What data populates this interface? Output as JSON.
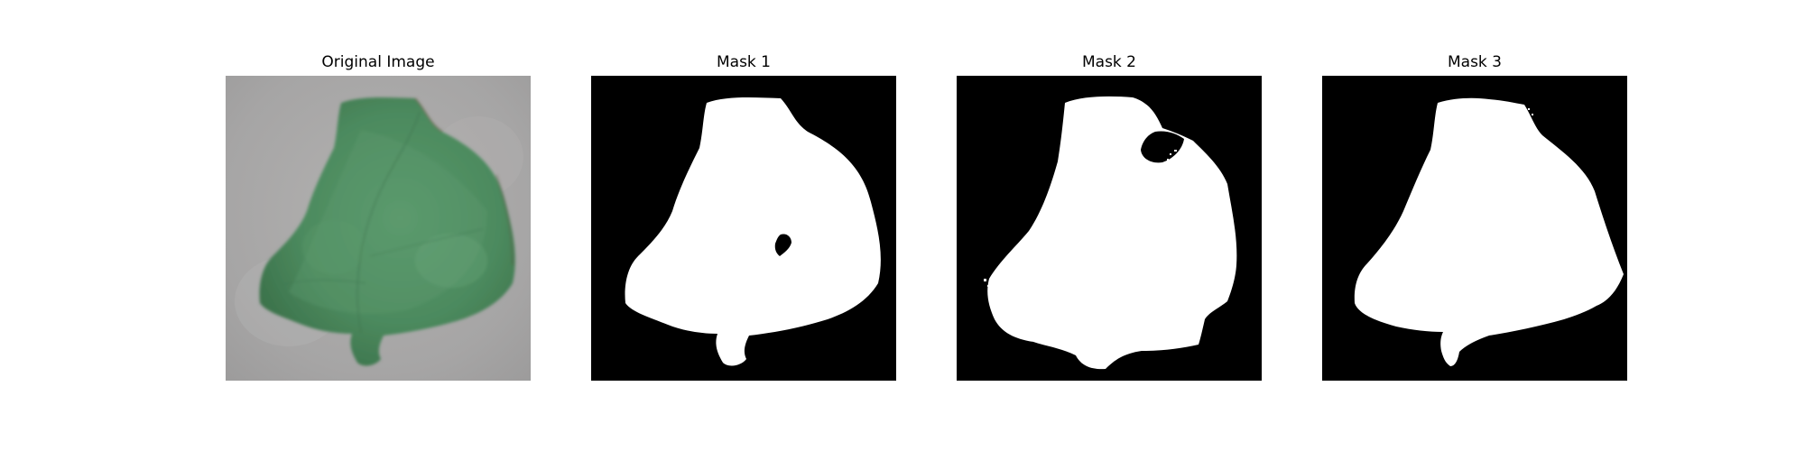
{
  "panels": [
    {
      "title": "Original Image"
    },
    {
      "title": "Mask 1"
    },
    {
      "title": "Mask 2"
    },
    {
      "title": "Mask 3"
    }
  ],
  "colors": {
    "background": "#ffffff",
    "mask_background": "#000000",
    "mask_foreground": "#ffffff",
    "leaf": "#4e8a5f",
    "leaf_dark": "#3d7350",
    "ground": "#a9a8a8"
  }
}
